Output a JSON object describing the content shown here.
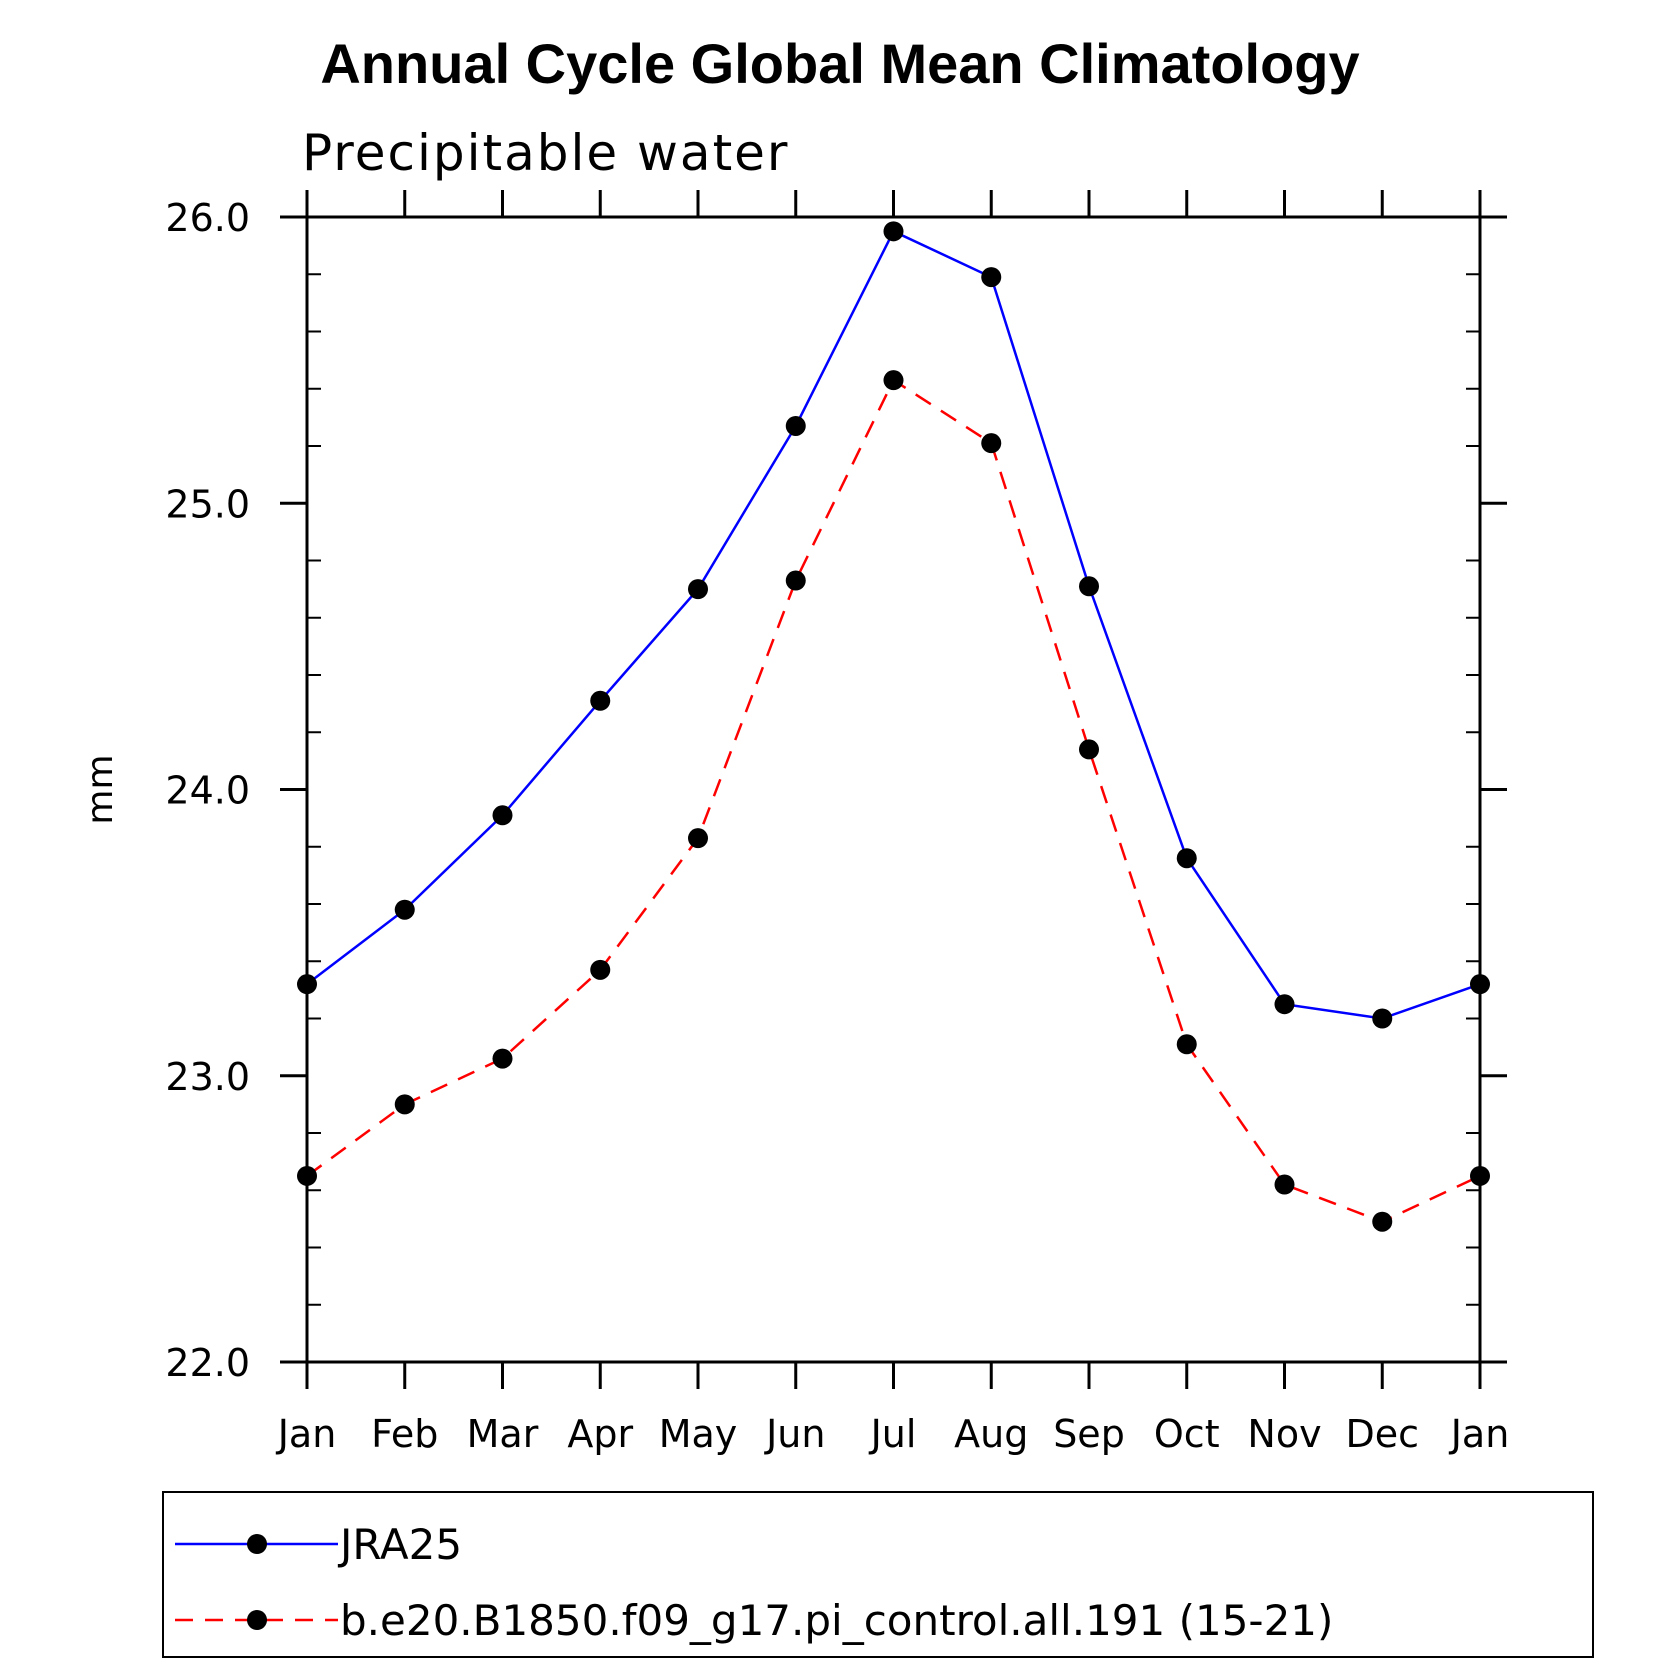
{
  "chart_data": {
    "type": "line",
    "title": "Annual Cycle Global Mean Climatology",
    "subtitle": "Precipitable water",
    "ylabel": "mm",
    "xlabel": "",
    "categories": [
      "Jan",
      "Feb",
      "Mar",
      "Apr",
      "May",
      "Jun",
      "Jul",
      "Aug",
      "Sep",
      "Oct",
      "Nov",
      "Dec",
      "Jan"
    ],
    "ylim": [
      22.0,
      26.0
    ],
    "yticks": [
      "22.0",
      "23.0",
      "24.0",
      "25.0",
      "26.0"
    ],
    "ytick_values": [
      22.0,
      23.0,
      24.0,
      25.0,
      26.0
    ],
    "grid": false,
    "legend_position": "bottom",
    "series": [
      {
        "name": "JRA25",
        "color": "#0000ff",
        "dash": "solid",
        "values": [
          23.32,
          23.58,
          23.91,
          24.31,
          24.7,
          25.27,
          25.95,
          25.79,
          24.71,
          23.76,
          23.25,
          23.2,
          23.32
        ]
      },
      {
        "name": "b.e20.B1850.f09_g17.pi_control.all.191 (15-21)",
        "color": "#ff0000",
        "dash": "dashed",
        "values": [
          22.65,
          22.9,
          23.06,
          23.37,
          23.83,
          24.73,
          25.43,
          25.21,
          24.14,
          23.11,
          22.62,
          22.49,
          22.65
        ]
      }
    ]
  }
}
